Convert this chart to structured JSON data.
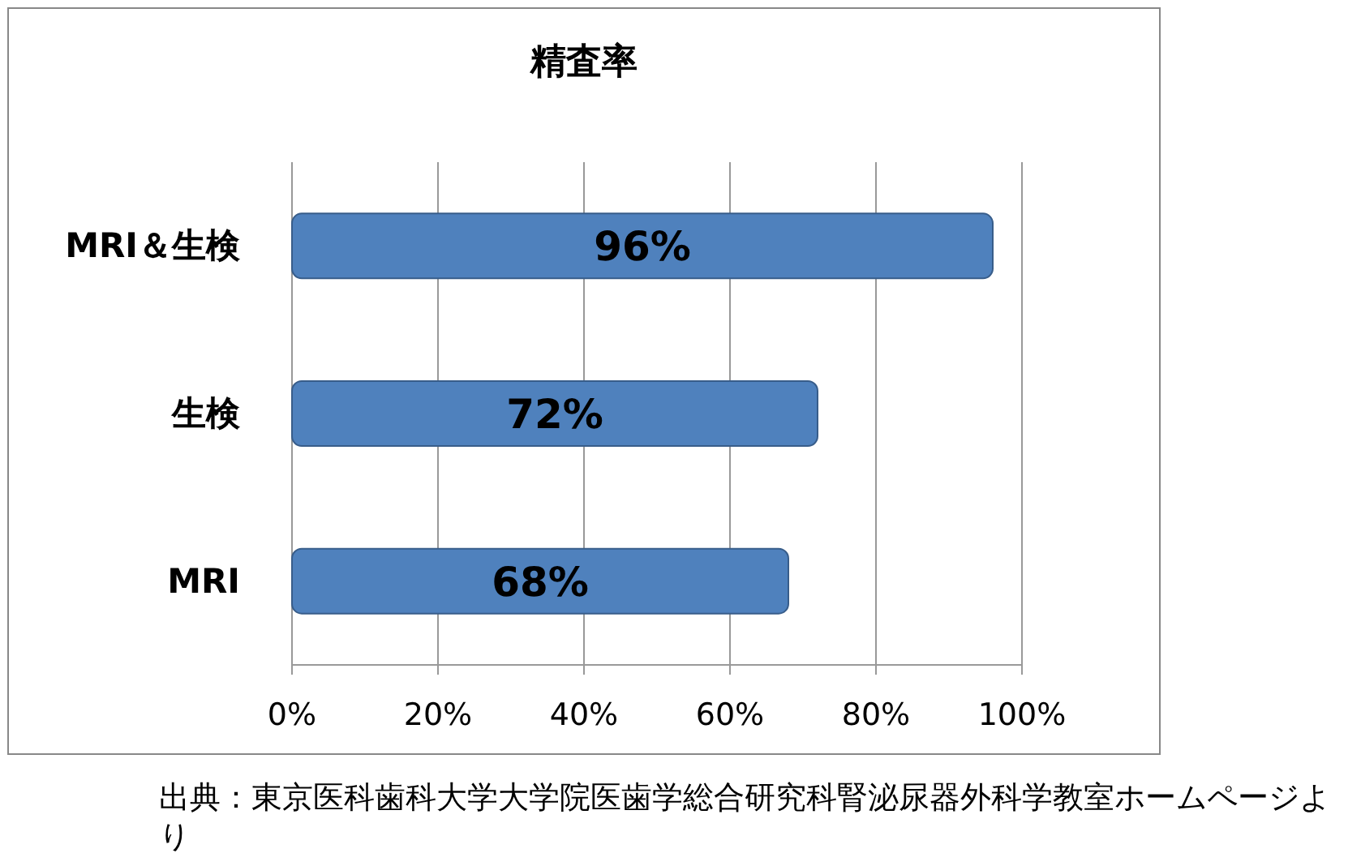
{
  "chart_data": {
    "type": "bar",
    "orientation": "horizontal",
    "title": "精査率",
    "categories": [
      "MRI＆生検",
      "生検",
      "MRI"
    ],
    "values": [
      96,
      72,
      68
    ],
    "value_labels": [
      "96%",
      "72%",
      "68%"
    ],
    "color": "#4f81bd",
    "xlim": [
      0,
      100
    ],
    "xticks": [
      {
        "value": 0,
        "label": "0%"
      },
      {
        "value": 20,
        "label": "20%"
      },
      {
        "value": 40,
        "label": "40%"
      },
      {
        "value": 60,
        "label": "60%"
      },
      {
        "value": 80,
        "label": "80%"
      },
      {
        "value": 100,
        "label": "100%"
      }
    ],
    "grid": "x",
    "annotations": [
      "出典：東京医科歯科大学大学院医歯学総合研究科腎泌尿器外科学教室ホームページより"
    ]
  }
}
